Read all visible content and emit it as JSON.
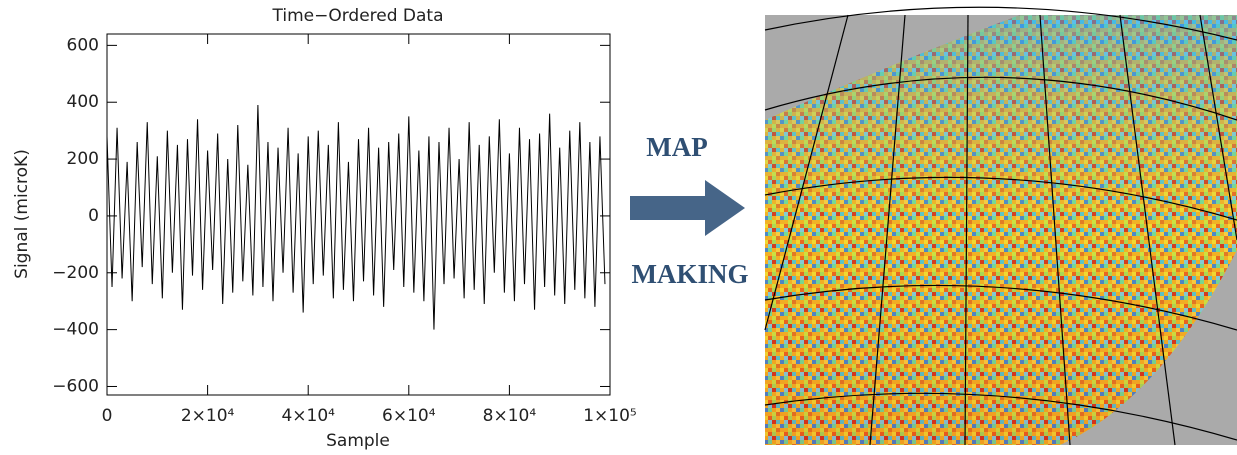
{
  "chart_data": {
    "type": "line",
    "title": "Time−Ordered Data",
    "x_label": "Sample",
    "y_label": "Signal (microK)",
    "color": "#000000",
    "annotations": [
      "MAP",
      "MAKING"
    ],
    "x": [
      0,
      1000,
      2000,
      3000,
      4000,
      5000,
      6000,
      7000,
      8000,
      9000,
      10000,
      11000,
      12000,
      13000,
      14000,
      15000,
      16000,
      17000,
      18000,
      19000,
      20000,
      21000,
      22000,
      23000,
      24000,
      25000,
      26000,
      27000,
      28000,
      29000,
      30000,
      31000,
      32000,
      33000,
      34000,
      35000,
      36000,
      37000,
      38000,
      39000,
      40000,
      41000,
      42000,
      43000,
      44000,
      45000,
      46000,
      47000,
      48000,
      49000,
      50000,
      51000,
      52000,
      53000,
      54000,
      55000,
      56000,
      57000,
      58000,
      59000,
      60000,
      61000,
      62000,
      63000,
      64000,
      65000,
      66000,
      67000,
      68000,
      69000,
      70000,
      71000,
      72000,
      73000,
      74000,
      75000,
      76000,
      77000,
      78000,
      79000,
      80000,
      81000,
      82000,
      83000,
      84000,
      85000,
      86000,
      87000,
      88000,
      89000,
      90000,
      91000,
      92000,
      93000,
      94000,
      95000,
      96000,
      97000,
      98000,
      99000
    ],
    "values": [
      280,
      -250,
      310,
      -220,
      190,
      -300,
      260,
      -180,
      330,
      -240,
      210,
      -290,
      300,
      -200,
      250,
      -330,
      270,
      -210,
      340,
      -260,
      230,
      -190,
      290,
      -310,
      200,
      -270,
      320,
      -230,
      180,
      -280,
      390,
      -250,
      260,
      -300,
      240,
      -200,
      310,
      -270,
      220,
      -340,
      280,
      -240,
      300,
      -210,
      250,
      -290,
      330,
      -260,
      190,
      -300,
      270,
      -230,
      310,
      -280,
      240,
      -320,
      260,
      -190,
      290,
      -250,
      350,
      -270,
      230,
      -300,
      280,
      -400,
      260,
      -240,
      310,
      -220,
      200,
      -290,
      330,
      -260,
      250,
      -310,
      280,
      -200,
      340,
      -270,
      220,
      -300,
      310,
      -240,
      270,
      -330,
      290,
      -250,
      360,
      -280,
      240,
      -310,
      300,
      -260,
      330,
      -290,
      260,
      -320,
      280,
      -240
    ],
    "xlim": [
      0,
      100000
    ],
    "xticks": [
      0,
      {
        "value": 20000,
        "label": "2×10⁴"
      },
      {
        "value": 40000,
        "label": "4×10⁴"
      },
      {
        "value": 60000,
        "label": "6×10⁴"
      },
      {
        "value": 80000,
        "label": "8×10⁴"
      },
      {
        "value": 100000,
        "label": "1×10⁵"
      }
    ],
    "ylim": [
      -630,
      640
    ],
    "yticks": [
      {
        "value": -600,
        "label": "−600"
      },
      {
        "value": -400,
        "label": "−400"
      },
      {
        "value": -200,
        "label": "−200"
      },
      0,
      200,
      400,
      600
    ]
  }
}
